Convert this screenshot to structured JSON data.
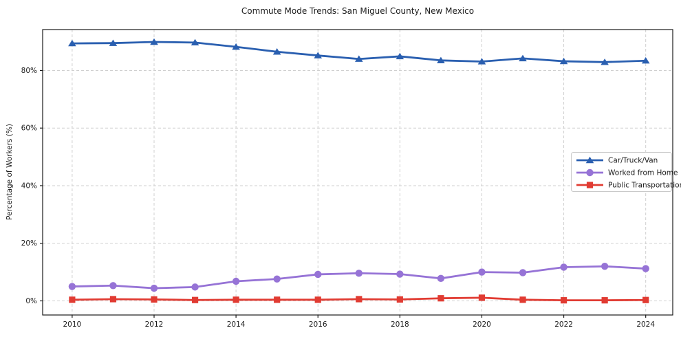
{
  "chart_data": {
    "type": "line",
    "title": "Commute Mode Trends: San Miguel County, New Mexico",
    "xlabel": "",
    "ylabel": "Percentage of Workers (%)",
    "x": [
      2010,
      2011,
      2012,
      2013,
      2014,
      2015,
      2016,
      2017,
      2018,
      2019,
      2020,
      2021,
      2022,
      2023,
      2024
    ],
    "xticks": [
      2010,
      2012,
      2014,
      2016,
      2018,
      2020,
      2022,
      2024
    ],
    "yticks": [
      0,
      20,
      40,
      60,
      80
    ],
    "ytick_suffix": "%",
    "xlim": [
      2009.28,
      2024.66
    ],
    "ylim": [
      -4.9,
      94.2
    ],
    "grid": true,
    "legend_position": "center-right",
    "background_color": "#ffffff",
    "grid_color": "#cfcfcf",
    "series": [
      {
        "name": "Car/Truck/Van",
        "color": "#2a5fb0",
        "marker": "triangle",
        "values": [
          89.4,
          89.5,
          89.9,
          89.7,
          88.2,
          86.5,
          85.2,
          84.0,
          84.9,
          83.5,
          83.1,
          84.2,
          83.2,
          82.9,
          83.4
        ]
      },
      {
        "name": "Worked from Home",
        "color": "#9673d6",
        "marker": "circle",
        "values": [
          5.0,
          5.3,
          4.4,
          4.8,
          6.8,
          7.6,
          9.2,
          9.6,
          9.3,
          7.8,
          10.0,
          9.8,
          11.7,
          12.0,
          11.2
        ]
      },
      {
        "name": "Public Transportation",
        "color": "#e13b32",
        "marker": "square",
        "values": [
          0.4,
          0.6,
          0.5,
          0.3,
          0.4,
          0.4,
          0.4,
          0.6,
          0.5,
          0.9,
          1.1,
          0.4,
          0.2,
          0.2,
          0.3
        ]
      }
    ]
  }
}
